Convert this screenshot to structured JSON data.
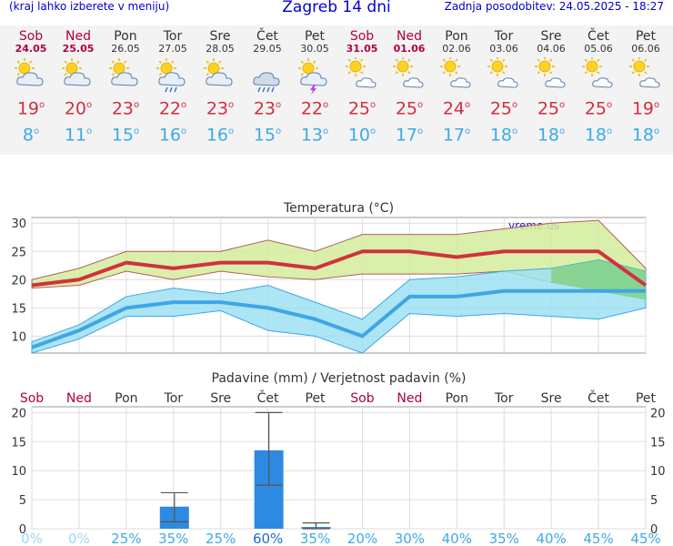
{
  "header": {
    "hint": "(kraj lahko izberete v meniju)",
    "title": "Zagreb 14 dni",
    "updated": "Zadnja posodobitev: 24.05.2025 - 18:27"
  },
  "days": [
    {
      "name": "Sob",
      "date": "24.05",
      "weekend": true,
      "icon": "cloudy-sun-icon",
      "max": "19",
      "min": "8"
    },
    {
      "name": "Ned",
      "date": "25.05",
      "weekend": true,
      "icon": "cloudy-sun-icon",
      "max": "20",
      "min": "11"
    },
    {
      "name": "Pon",
      "date": "26.05",
      "weekend": false,
      "icon": "cloudy-sun-icon",
      "max": "23",
      "min": "15"
    },
    {
      "name": "Tor",
      "date": "27.05",
      "weekend": false,
      "icon": "sun-rain-icon",
      "max": "22",
      "min": "16"
    },
    {
      "name": "Sre",
      "date": "28.05",
      "weekend": false,
      "icon": "cloudy-sun-icon",
      "max": "23",
      "min": "16"
    },
    {
      "name": "Čet",
      "date": "29.05",
      "weekend": false,
      "icon": "rain-cloud-icon",
      "max": "23",
      "min": "15"
    },
    {
      "name": "Pet",
      "date": "30.05",
      "weekend": false,
      "icon": "thunder-icon",
      "max": "22",
      "min": "13"
    },
    {
      "name": "Sob",
      "date": "31.05",
      "weekend": true,
      "icon": "partly-sunny-icon",
      "max": "25",
      "min": "10"
    },
    {
      "name": "Ned",
      "date": "01.06",
      "weekend": true,
      "icon": "partly-sunny-icon",
      "max": "25",
      "min": "17"
    },
    {
      "name": "Pon",
      "date": "02.06",
      "weekend": false,
      "icon": "partly-sunny-icon",
      "max": "24",
      "min": "17"
    },
    {
      "name": "Tor",
      "date": "03.06",
      "weekend": false,
      "icon": "partly-sunny-icon",
      "max": "25",
      "min": "18"
    },
    {
      "name": "Sre",
      "date": "04.06",
      "weekend": false,
      "icon": "partly-sunny-icon",
      "max": "25",
      "min": "18"
    },
    {
      "name": "Čet",
      "date": "05.06",
      "weekend": false,
      "icon": "partly-sunny-icon",
      "max": "25",
      "min": "18"
    },
    {
      "name": "Pet",
      "date": "06.06",
      "weekend": false,
      "icon": "partly-sunny-icon",
      "max": "19",
      "min": "18"
    }
  ],
  "chart_data": [
    {
      "type": "line",
      "title": "Temperatura (°C)",
      "watermark": "vreme.us",
      "ylim": [
        7,
        31
      ],
      "yticks": [
        10,
        15,
        20,
        25,
        30
      ],
      "grid": true,
      "colors": {
        "max": "#d0323e",
        "min": "#3ea6e6",
        "max_band": "#d4ec9a",
        "min_band": "#9ee0f2",
        "overlap": "#7fd07f"
      },
      "series": [
        {
          "values": [
            19,
            20,
            23,
            22,
            23,
            23,
            22,
            25,
            25,
            24,
            25,
            25,
            25,
            19
          ],
          "upper": [
            20,
            22,
            25,
            25,
            25,
            27,
            25,
            28,
            28,
            28,
            29,
            30,
            30.5,
            22
          ],
          "lower": [
            18.5,
            19,
            21.5,
            20,
            21.5,
            20.5,
            20,
            21,
            21,
            21,
            21.5,
            19.5,
            18,
            16.5
          ]
        },
        {
          "values": [
            8,
            11,
            15,
            16,
            16,
            15,
            13,
            10,
            17,
            17,
            18,
            18,
            18,
            18
          ],
          "upper": [
            9,
            12,
            17,
            18.5,
            17.5,
            19,
            16,
            13,
            20,
            20.5,
            21.5,
            22,
            23.5,
            21.5
          ],
          "lower": [
            7,
            9.5,
            13.5,
            13.5,
            14.5,
            11,
            10,
            7,
            14,
            13.5,
            14,
            13.5,
            13,
            15
          ]
        }
      ]
    },
    {
      "type": "bar",
      "title": "Padavine (mm) / Verjetnost padavin (%)",
      "categories": [
        "Sob",
        "Ned",
        "Pon",
        "Tor",
        "Sre",
        "Čet",
        "Pet",
        "Sob",
        "Ned",
        "Pon",
        "Tor",
        "Sre",
        "Čet",
        "Pet"
      ],
      "ylim": [
        0,
        21
      ],
      "yticks": [
        0,
        5,
        10,
        15,
        20
      ],
      "grid": true,
      "bar_color": "#2e89e0",
      "values": [
        0,
        0,
        0,
        3.8,
        0,
        13.5,
        0.3,
        0,
        0,
        0,
        0,
        0,
        0,
        0
      ],
      "error_high": [
        0,
        0,
        0,
        6.2,
        0,
        20,
        1,
        0,
        0,
        0,
        0,
        0,
        0,
        0
      ],
      "error_low": [
        0,
        0,
        0,
        1.2,
        0,
        7.5,
        0,
        0,
        0,
        0,
        0,
        0,
        0,
        0
      ],
      "probability": [
        "0%",
        "0%",
        "25%",
        "35%",
        "25%",
        "60%",
        "35%",
        "20%",
        "30%",
        "40%",
        "35%",
        "40%",
        "45%",
        "45%"
      ]
    }
  ]
}
